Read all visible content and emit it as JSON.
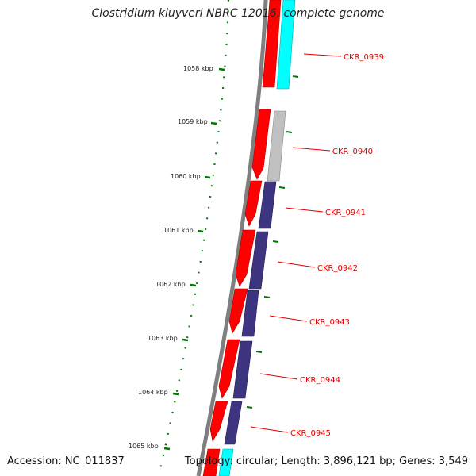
{
  "title": "Clostridium kluyveri NBRC 12016, complete genome",
  "accession": "Accession: NC_011837",
  "summary": "Topology: circular; Length: 3,896,121 bp; Genes: 3,549",
  "colors": {
    "forward_cds": "#ff0000",
    "reverse_cds_gray": "#c0c0c0",
    "reverse_cds_purple": "#3d3580",
    "cyan_feature": "#00ffff",
    "backbone": "#808080",
    "gc_ticks": "#007700",
    "gene_labels": "#e00000"
  },
  "ticks": [
    {
      "label": "1058 kbp"
    },
    {
      "label": "1059 kbp"
    },
    {
      "label": "1060 kbp"
    },
    {
      "label": "1061 kbp"
    },
    {
      "label": "1062 kbp"
    },
    {
      "label": "1063 kbp"
    },
    {
      "label": "1064 kbp"
    },
    {
      "label": "1065 kbp"
    }
  ],
  "gene_labels": [
    {
      "label": "CKR_0939"
    },
    {
      "label": "CKR_0940"
    },
    {
      "label": "CKR_0941"
    },
    {
      "label": "CKR_0942"
    },
    {
      "label": "CKR_0943"
    },
    {
      "label": "CKR_0944"
    },
    {
      "label": "CKR_0945"
    }
  ]
}
